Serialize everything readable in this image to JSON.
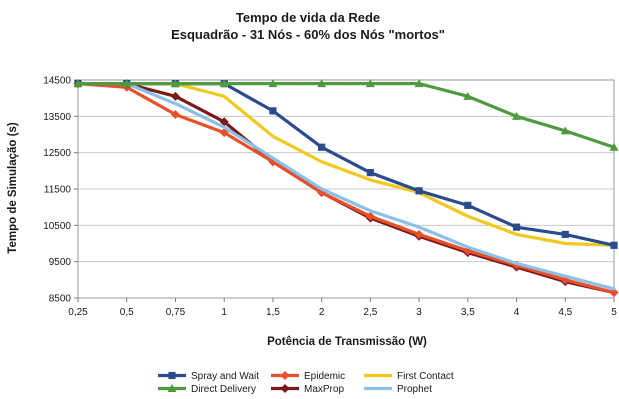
{
  "chart_data": {
    "type": "line",
    "title": "Tempo de vida da Rede",
    "subtitle": "Esquadrão - 31 Nós - 60% dos Nós \"mortos\"",
    "xlabel": "Potência de Transmissão (W)",
    "ylabel": "Tempo de Simulação (s)",
    "categories": [
      "0,25",
      "0,5",
      "0,75",
      "1",
      "1,5",
      "2",
      "2,5",
      "3",
      "3,5",
      "4",
      "4,5",
      "5"
    ],
    "yticks": [
      "14500",
      "13500",
      "12500",
      "11500",
      "10500",
      "9500",
      "8500"
    ],
    "ylim": [
      8500,
      14500
    ],
    "grid": "horizontal",
    "legend_position": "bottom",
    "series": [
      {
        "name": "Spray and Wait",
        "color": "#2b4c8c",
        "marker": "square",
        "values": [
          14400,
          14400,
          14400,
          14400,
          13650,
          12650,
          11950,
          11450,
          11050,
          10450,
          10250,
          9950
        ]
      },
      {
        "name": "Epidemic",
        "color": "#e8502a",
        "marker": "diamond",
        "values": [
          14400,
          14300,
          13550,
          13050,
          12250,
          11400,
          10750,
          10250,
          9800,
          9400,
          9000,
          8650
        ]
      },
      {
        "name": "First Contact",
        "color": "#f2c81e",
        "marker": "none",
        "values": [
          14400,
          14400,
          14400,
          14050,
          12950,
          12250,
          11750,
          11400,
          10750,
          10250,
          10000,
          9950
        ]
      },
      {
        "name": "Direct Delivery",
        "color": "#4f9a3e",
        "marker": "triangle",
        "values": [
          14400,
          14400,
          14400,
          14400,
          14400,
          14400,
          14400,
          14400,
          14050,
          13500,
          13100,
          12650
        ]
      },
      {
        "name": "MaxProp",
        "color": "#7a1a1a",
        "marker": "diamond",
        "values": [
          14400,
          14400,
          14050,
          13350,
          12250,
          11400,
          10700,
          10200,
          9750,
          9350,
          8950,
          8650
        ]
      },
      {
        "name": "Prophet",
        "color": "#8cc0e8",
        "marker": "none",
        "values": [
          14400,
          14400,
          13850,
          13200,
          12350,
          11500,
          10900,
          10450,
          9900,
          9450,
          9100,
          8750
        ]
      }
    ]
  }
}
